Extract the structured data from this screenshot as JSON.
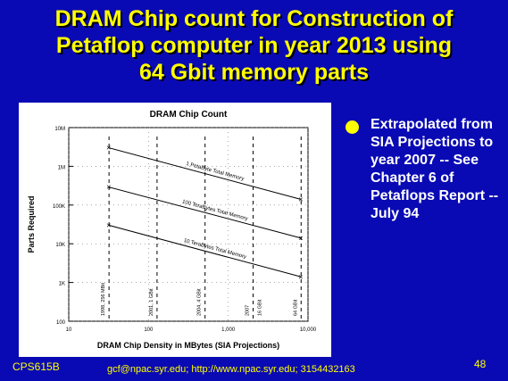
{
  "slide": {
    "title_lines": [
      "DRAM Chip count for Construction of",
      "Petaflop computer in year 2013 using",
      "64 Gbit memory parts"
    ],
    "bullet": "Extrapolated from SIA Projections to year 2007 -- See Chapter 6 of Petaflops Report -- July 94",
    "footer_left": "CPS615B",
    "footer_mid": "gcf@npac.syr.edu; http://www.npac.syr.edu; 3154432163",
    "page_number": "48"
  },
  "colors": {
    "background": "#0a0ab4",
    "title": "#ffff00",
    "bullet": "#ffff00",
    "text": "#ffffff",
    "chart_ink": "#000000"
  },
  "chart_data": {
    "type": "line",
    "title": "DRAM Chip Count",
    "xlabel": "DRAM Chip Density in MBytes (SIA Projections)",
    "ylabel": "Parts Required",
    "x_scale": "log",
    "y_scale": "log",
    "xlim": [
      10,
      10000
    ],
    "ylim": [
      100,
      10000000
    ],
    "x_ticks": [
      {
        "value": 10,
        "label": "10"
      },
      {
        "value": 100,
        "label": "100"
      },
      {
        "value": 1000,
        "label": "1,000"
      },
      {
        "value": 10000,
        "label": "10,000"
      }
    ],
    "y_ticks": [
      {
        "value": 10000000,
        "label": "10M"
      },
      {
        "value": 1000000,
        "label": "1M"
      },
      {
        "value": 100000,
        "label": "100K"
      },
      {
        "value": 10000,
        "label": "10K"
      },
      {
        "value": 1000,
        "label": "1K"
      },
      {
        "value": 100,
        "label": "100"
      }
    ],
    "vertical_markers": [
      {
        "x": 32,
        "label": "1998, 256 MBit"
      },
      {
        "x": 128,
        "label": "2001, 1 GBit"
      },
      {
        "x": 512,
        "label": "2004, 4 GBit"
      },
      {
        "x": 2048,
        "label": "2007"
      },
      {
        "x": 2048,
        "label": "16 GBit"
      },
      {
        "x": 8192,
        "label": "64 GBit"
      }
    ],
    "series": [
      {
        "name": "1 PetaByte Total Memory",
        "x": [
          32,
          8192
        ],
        "y": [
          3000000,
          140000
        ]
      },
      {
        "name": "100 TeraBytes Total Memory",
        "x": [
          32,
          8192
        ],
        "y": [
          290000,
          14000
        ]
      },
      {
        "name": "10 TeraBytes Total Memory",
        "x": [
          32,
          8192
        ],
        "y": [
          30000,
          1400
        ]
      }
    ],
    "grid": "dotted"
  }
}
